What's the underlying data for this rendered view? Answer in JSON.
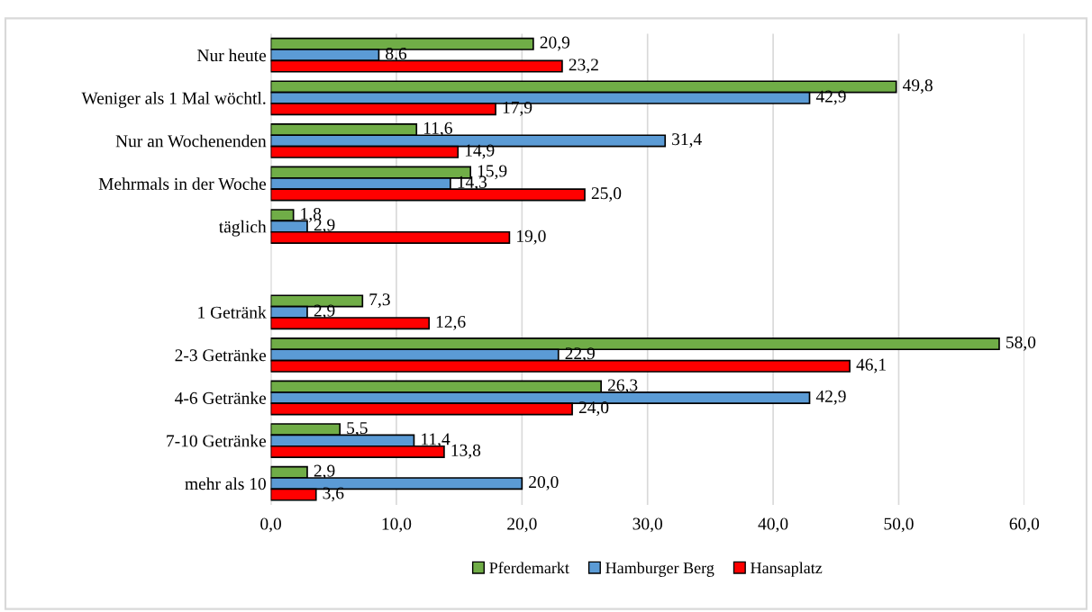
{
  "chart_data": {
    "type": "bar",
    "orientation": "horizontal",
    "categories": [
      "Nur heute",
      "Weniger als 1 Mal wöchtl.",
      "Nur an Wochenenden",
      "Mehrmals in der Woche",
      "täglich",
      null,
      "1 Getränk",
      "2-3 Getränke",
      "4-6 Getränke",
      "7-10 Getränke",
      "mehr als 10"
    ],
    "series": [
      {
        "name": "Pferdemarkt",
        "color": "#70ad47",
        "values": [
          20.9,
          49.8,
          11.6,
          15.9,
          1.8,
          null,
          7.3,
          58.0,
          26.3,
          5.5,
          2.9
        ],
        "value_labels": [
          "20,9",
          "49,8",
          "11,6",
          "15,9",
          "1,8",
          null,
          "7,3",
          "58,0",
          "26,3",
          "5,5",
          "2,9"
        ]
      },
      {
        "name": "Hamburger Berg",
        "color": "#5b9bd5",
        "values": [
          8.6,
          42.9,
          31.4,
          14.3,
          2.9,
          null,
          2.9,
          22.9,
          42.9,
          11.4,
          20.0
        ],
        "value_labels": [
          "8,6",
          "42,9",
          "31,4",
          "14,3",
          "2,9",
          null,
          "2,9",
          "22,9",
          "42,9",
          "11,4",
          "20,0"
        ]
      },
      {
        "name": "Hansaplatz",
        "color": "#ff0000",
        "values": [
          23.2,
          17.9,
          14.9,
          25.0,
          19.0,
          null,
          12.6,
          46.1,
          24.0,
          13.8,
          3.6
        ],
        "value_labels": [
          "23,2",
          "17,9",
          "14,9",
          "25,0",
          "19,0",
          null,
          "12,6",
          "46,1",
          "24,0",
          "13,8",
          "3,6"
        ]
      }
    ],
    "xlim": [
      0,
      60
    ],
    "xticks": [
      {
        "value": 0,
        "label": "0,0"
      },
      {
        "value": 10,
        "label": "10,0"
      },
      {
        "value": 20,
        "label": "20,0"
      },
      {
        "value": 30,
        "label": "30,0"
      },
      {
        "value": 40,
        "label": "40,0"
      },
      {
        "value": 50,
        "label": "50,0"
      },
      {
        "value": 60,
        "label": "60,0"
      }
    ],
    "grid": "x",
    "legend": "bottom"
  }
}
